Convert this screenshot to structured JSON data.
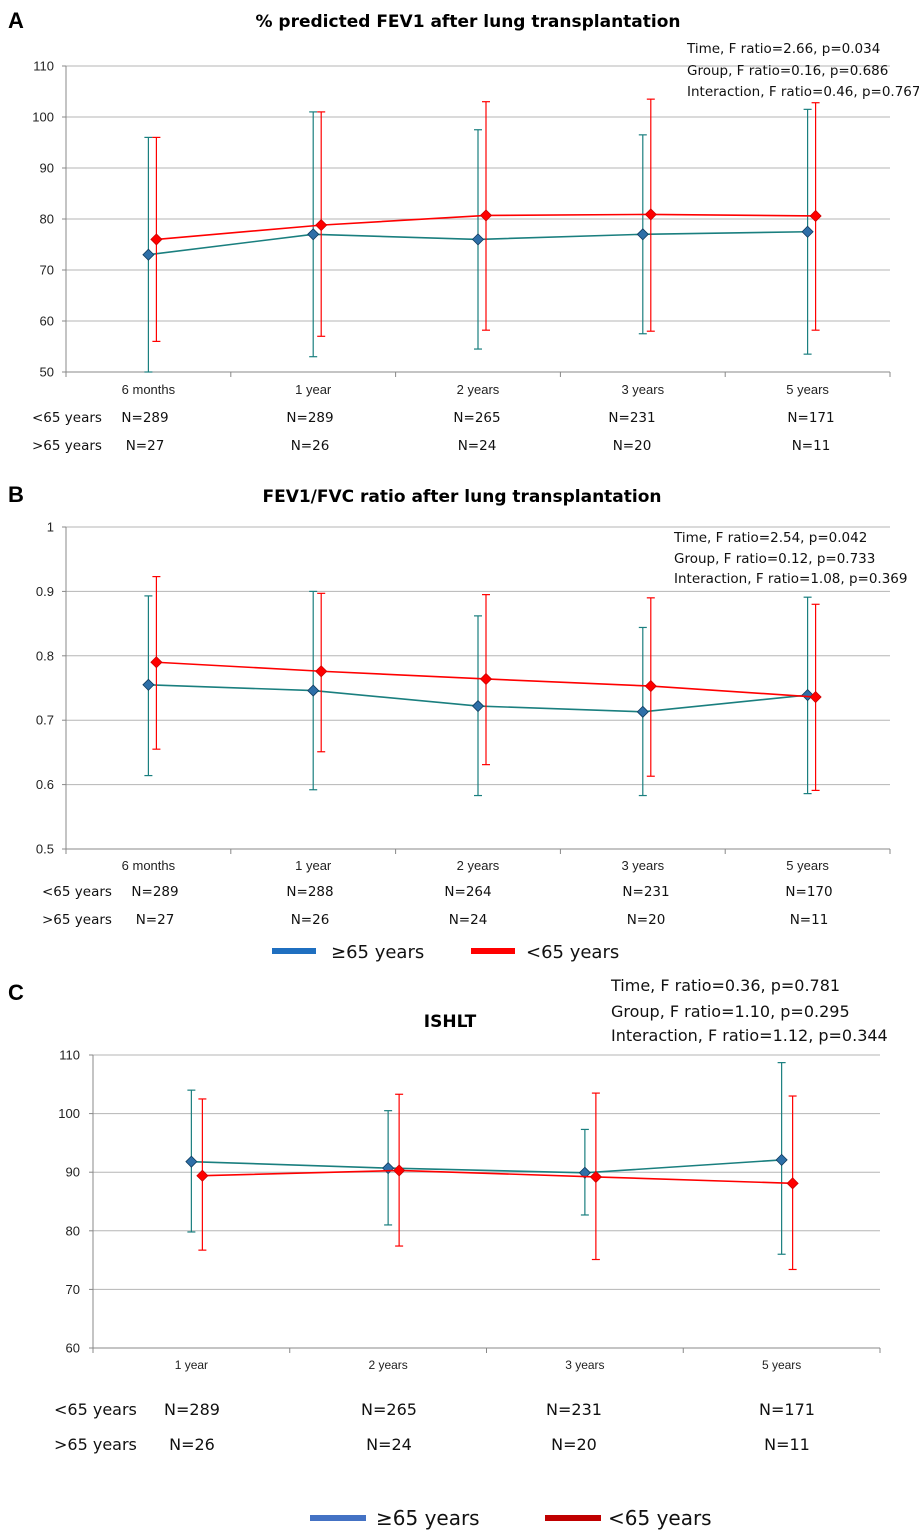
{
  "chart_data": [
    {
      "panel": "A",
      "type": "line",
      "title": "% predicted FEV1 after lung transplantation",
      "categories": [
        "6 months",
        "1 year",
        "2 years",
        "3 years",
        "5 years"
      ],
      "ylim": [
        50,
        110
      ],
      "yticks": [
        50,
        60,
        70,
        80,
        90,
        100,
        110
      ],
      "grid": true,
      "stats": [
        "Time, F ratio=2.66, p=0.034",
        "Group, F ratio=0.16, p=0.686",
        "Interaction, F ratio=0.46, p=0.767"
      ],
      "series": [
        {
          "values": [
            73,
            77,
            76,
            77,
            77.5
          ],
          "upper": [
            96,
            101,
            97.5,
            96.5,
            101.5
          ],
          "lower": [
            50,
            53,
            54.5,
            57.5,
            53.5
          ],
          "color": "#1a7f7f",
          "marker_color": "#2e6fa8"
        },
        {
          "values": [
            76,
            78.8,
            80.7,
            80.9,
            80.6
          ],
          "upper": [
            96,
            101,
            103,
            103.5,
            102.8
          ],
          "lower": [
            56,
            57,
            58.2,
            58,
            58.2
          ],
          "color": "#ff0000",
          "marker_color": "#ff0000"
        }
      ],
      "n_rows": [
        {
          "label": "<65 years",
          "values": [
            "N=289",
            "N=289",
            "N=265",
            "N=231",
            "N=171"
          ]
        },
        {
          "label": ">65 years",
          "values": [
            "N=27",
            "N=26",
            "N=24",
            "N=20",
            "N=11"
          ]
        }
      ]
    },
    {
      "panel": "B",
      "type": "line",
      "title": "FEV1/FVC ratio after lung transplantation",
      "categories": [
        "6 months",
        "1 year",
        "2 years",
        "3 years",
        "5 years"
      ],
      "ylim": [
        0.5,
        1
      ],
      "yticks": [
        0.5,
        0.6,
        0.7,
        0.8,
        0.9,
        1
      ],
      "ytick_labels": [
        "0.5",
        "0.6",
        "0.7",
        "0.8",
        "0.9",
        "1"
      ],
      "grid": true,
      "stats": [
        "Time, F ratio=2.54, p=0.042",
        "Group, F ratio=0.12, p=0.733",
        "Interaction, F ratio=1.08, p=0.369"
      ],
      "series": [
        {
          "values": [
            0.755,
            0.746,
            0.722,
            0.713,
            0.739
          ],
          "upper": [
            0.893,
            0.9,
            0.862,
            0.844,
            0.891
          ],
          "lower": [
            0.614,
            0.592,
            0.583,
            0.583,
            0.586
          ],
          "color": "#1a7f7f",
          "marker_color": "#2e6fa8"
        },
        {
          "values": [
            0.79,
            0.776,
            0.764,
            0.753,
            0.736
          ],
          "upper": [
            0.923,
            0.897,
            0.895,
            0.89,
            0.88
          ],
          "lower": [
            0.655,
            0.651,
            0.631,
            0.613,
            0.591
          ],
          "color": "#ff0000",
          "marker_color": "#ff0000"
        }
      ],
      "n_rows": [
        {
          "label": "<65 years",
          "values": [
            "N=289",
            "N=288",
            "N=264",
            "N=231",
            "N=170"
          ]
        },
        {
          "label": ">65 years",
          "values": [
            "N=27",
            "N=26",
            "N=24",
            "N=20",
            "N=11"
          ]
        }
      ],
      "legend": [
        {
          "label": "≥65 years",
          "color": "#1f6fc0"
        },
        {
          "label": "<65 years",
          "color": "#ff0000"
        }
      ]
    },
    {
      "panel": "C",
      "type": "line",
      "title": "ISHLT",
      "categories": [
        "1 year",
        "2 years",
        "3 years",
        "5 years"
      ],
      "ylim": [
        60,
        110
      ],
      "yticks": [
        60,
        70,
        80,
        90,
        100,
        110
      ],
      "grid": true,
      "stats": [
        "Time, F ratio=0.36, p=0.781",
        "Group, F ratio=1.10, p=0.295",
        "Interaction, F ratio=1.12, p=0.344"
      ],
      "series": [
        {
          "values": [
            91.8,
            90.7,
            89.9,
            92.1
          ],
          "upper": [
            104,
            100.5,
            97.3,
            108.7
          ],
          "lower": [
            79.8,
            81,
            82.7,
            76
          ],
          "color": "#1a7f7f",
          "marker_color": "#2e6fa8"
        },
        {
          "values": [
            89.4,
            90.3,
            89.2,
            88.1
          ],
          "upper": [
            102.5,
            103.3,
            103.5,
            103
          ],
          "lower": [
            76.7,
            77.4,
            75.1,
            73.4
          ],
          "color": "#ff0000",
          "marker_color": "#ff0000"
        }
      ],
      "n_rows": [
        {
          "label": "<65 years",
          "values": [
            "N=289",
            "N=265",
            "N=231",
            "N=171"
          ]
        },
        {
          "label": ">65 years",
          "values": [
            "N=26",
            "N=24",
            "N=20",
            "N=11"
          ]
        }
      ],
      "legend": [
        {
          "label": "≥65 years",
          "color": "#4472c4"
        },
        {
          "label": "<65 years",
          "color": "#c00000"
        }
      ]
    }
  ],
  "panel_letters": [
    "A",
    "B",
    "C"
  ]
}
